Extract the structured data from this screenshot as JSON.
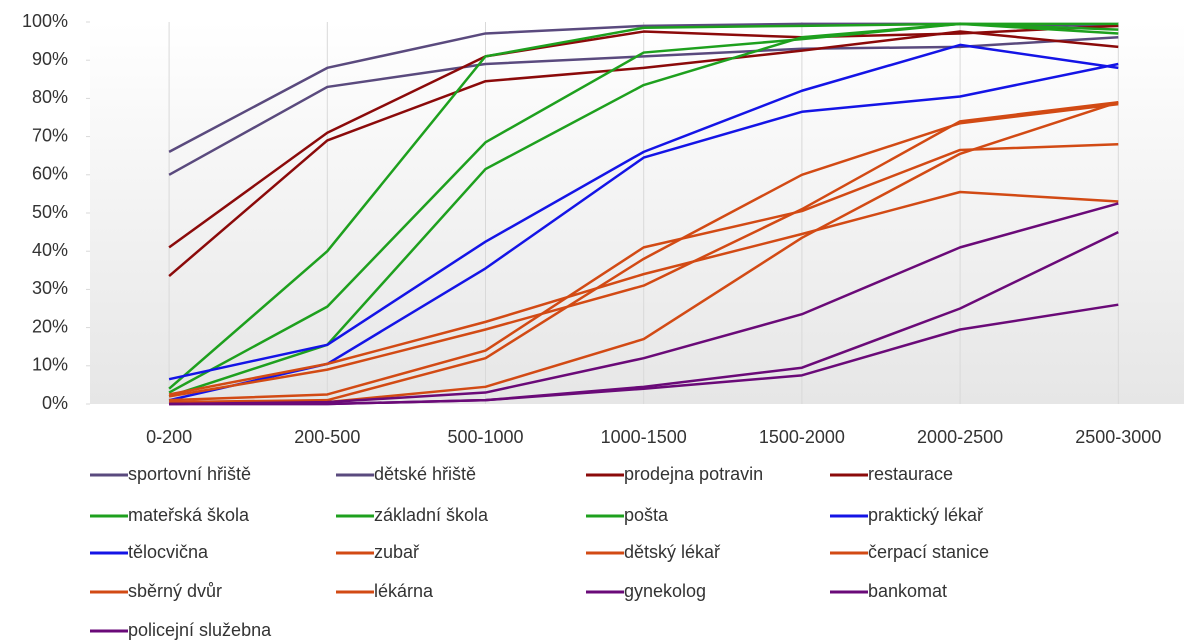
{
  "chart_data": {
    "type": "line",
    "categories": [
      "0-200",
      "200-500",
      "500-1000",
      "1000-1500",
      "1500-2000",
      "2000-2500",
      "2500-3000"
    ],
    "ylim": [
      0,
      100
    ],
    "yticks": [
      {
        "value": 0,
        "label": "0%"
      },
      {
        "value": 10,
        "label": "10%"
      },
      {
        "value": 20,
        "label": "20%"
      },
      {
        "value": 30,
        "label": "30%"
      },
      {
        "value": 40,
        "label": "40%"
      },
      {
        "value": 50,
        "label": "50%"
      },
      {
        "value": 60,
        "label": "60%"
      },
      {
        "value": 70,
        "label": "70%"
      },
      {
        "value": 80,
        "label": "80%"
      },
      {
        "value": 90,
        "label": "90%"
      },
      {
        "value": 100,
        "label": "100%"
      }
    ],
    "series": [
      {
        "name": "sportovní hřiště",
        "color": "#5a4a7e",
        "values": [
          66,
          88,
          97,
          99,
          99.5,
          99.5,
          99
        ]
      },
      {
        "name": "dětské hřiště",
        "color": "#5a4a7e",
        "values": [
          60,
          83,
          89,
          91,
          93,
          93.5,
          96
        ]
      },
      {
        "name": "prodejna potravin",
        "color": "#8b0a0a",
        "values": [
          41,
          71,
          91,
          97.5,
          96,
          97,
          99
        ]
      },
      {
        "name": "restaurace",
        "color": "#8b0a0a",
        "values": [
          33.5,
          69,
          84.5,
          88,
          92.5,
          97.5,
          93.5
        ]
      },
      {
        "name": "mateřská škola",
        "color": "#1ea01e",
        "values": [
          4,
          40,
          91,
          98.5,
          99,
          99.5,
          98
        ]
      },
      {
        "name": "základní škola",
        "color": "#1ea01e",
        "values": [
          3,
          25.5,
          68.5,
          92,
          95.5,
          99.5,
          97
        ]
      },
      {
        "name": "pošta",
        "color": "#1ea01e",
        "values": [
          2,
          15.5,
          61.5,
          83.5,
          96,
          99.5,
          99.5
        ]
      },
      {
        "name": "praktický lékař",
        "color": "#1414e6",
        "values": [
          6.5,
          15.5,
          42.5,
          66,
          82,
          94,
          88
        ]
      },
      {
        "name": "tělocvična",
        "color": "#1414e6",
        "values": [
          1,
          10.5,
          35.5,
          64.5,
          76.5,
          80.5,
          89
        ]
      },
      {
        "name": "zubař",
        "color": "#d24a14",
        "values": [
          2.5,
          10.5,
          21.5,
          34,
          44.5,
          55.5,
          53
        ]
      },
      {
        "name": "dětský lékař",
        "color": "#d24a14",
        "values": [
          2,
          9,
          19.5,
          31,
          51,
          74,
          79
        ]
      },
      {
        "name": "čerpací stanice",
        "color": "#d24a14",
        "values": [
          1,
          2.5,
          14,
          41,
          50.5,
          66.5,
          68
        ]
      },
      {
        "name": "sběrný dvůr",
        "color": "#d24a14",
        "values": [
          0.5,
          1,
          12,
          38,
          60,
          73.5,
          78.5
        ]
      },
      {
        "name": "lékárna",
        "color": "#d24a14",
        "values": [
          0,
          0.5,
          4.5,
          17,
          43.5,
          65.5,
          79
        ]
      },
      {
        "name": "gynekolog",
        "color": "#6a0a78",
        "values": [
          0,
          0.5,
          3,
          12,
          23.5,
          41,
          52.5
        ]
      },
      {
        "name": "bankomat",
        "color": "#6a0a78",
        "values": [
          0,
          0,
          1,
          4.5,
          9.5,
          25,
          45
        ]
      },
      {
        "name": "policejní služebna",
        "color": "#6a0a78",
        "values": [
          0,
          0,
          1,
          4,
          7.5,
          19.5,
          26
        ]
      }
    ]
  }
}
